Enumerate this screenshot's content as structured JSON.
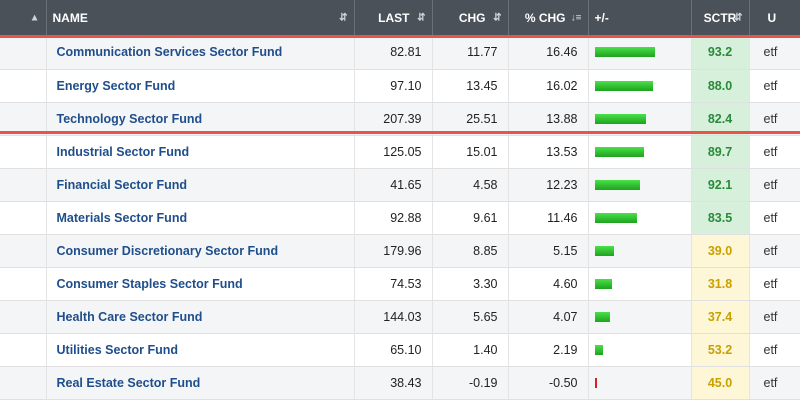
{
  "header": {
    "name": "NAME",
    "last": "LAST",
    "chg": "CHG",
    "pct_chg": "% CHG",
    "plusminus": "+/-",
    "sctr": "SCTR",
    "u": "U"
  },
  "icons": {
    "sort": "sort-arrows-icon",
    "sort_desc": "sort-descending-icon"
  },
  "colors": {
    "header_bg": "#4b5158",
    "name_link": "#1f4e8c",
    "highlight_border": "#e8544c",
    "bar_positive": "#22b022",
    "bar_negative": "#d0222a",
    "sctr_high_bg": "#d6f0dc",
    "sctr_high_text": "#2a8a3a",
    "sctr_low_bg": "#fdf7d8",
    "sctr_low_text": "#c9a000"
  },
  "rows": [
    {
      "name": "Communication Services Sector Fund",
      "last": "82.81",
      "chg": "11.77",
      "pct": "16.46",
      "pct_value": 16.46,
      "sctr": "93.2",
      "sctr_level": "high",
      "u": "etf"
    },
    {
      "name": "Energy Sector Fund",
      "last": "97.10",
      "chg": "13.45",
      "pct": "16.02",
      "pct_value": 16.02,
      "sctr": "88.0",
      "sctr_level": "high",
      "u": "etf"
    },
    {
      "name": "Technology Sector Fund",
      "last": "207.39",
      "chg": "25.51",
      "pct": "13.88",
      "pct_value": 13.88,
      "sctr": "82.4",
      "sctr_level": "high",
      "u": "etf"
    },
    {
      "name": "Industrial Sector Fund",
      "last": "125.05",
      "chg": "15.01",
      "pct": "13.53",
      "pct_value": 13.53,
      "sctr": "89.7",
      "sctr_level": "high",
      "u": "etf"
    },
    {
      "name": "Financial Sector Fund",
      "last": "41.65",
      "chg": "4.58",
      "pct": "12.23",
      "pct_value": 12.23,
      "sctr": "92.1",
      "sctr_level": "high",
      "u": "etf"
    },
    {
      "name": "Materials Sector Fund",
      "last": "92.88",
      "chg": "9.61",
      "pct": "11.46",
      "pct_value": 11.46,
      "sctr": "83.5",
      "sctr_level": "high",
      "u": "etf"
    },
    {
      "name": "Consumer Discretionary Sector Fund",
      "last": "179.96",
      "chg": "8.85",
      "pct": "5.15",
      "pct_value": 5.15,
      "sctr": "39.0",
      "sctr_level": "low",
      "u": "etf"
    },
    {
      "name": "Consumer Staples Sector Fund",
      "last": "74.53",
      "chg": "3.30",
      "pct": "4.60",
      "pct_value": 4.6,
      "sctr": "31.8",
      "sctr_level": "low",
      "u": "etf"
    },
    {
      "name": "Health Care Sector Fund",
      "last": "144.03",
      "chg": "5.65",
      "pct": "4.07",
      "pct_value": 4.07,
      "sctr": "37.4",
      "sctr_level": "low",
      "u": "etf"
    },
    {
      "name": "Utilities Sector Fund",
      "last": "65.10",
      "chg": "1.40",
      "pct": "2.19",
      "pct_value": 2.19,
      "sctr": "53.2",
      "sctr_level": "low",
      "u": "etf"
    },
    {
      "name": "Real Estate Sector Fund",
      "last": "38.43",
      "chg": "-0.19",
      "pct": "-0.50",
      "pct_value": -0.5,
      "sctr": "45.0",
      "sctr_level": "low",
      "u": "etf"
    }
  ],
  "highlighted_rows": [
    0,
    1,
    2
  ]
}
